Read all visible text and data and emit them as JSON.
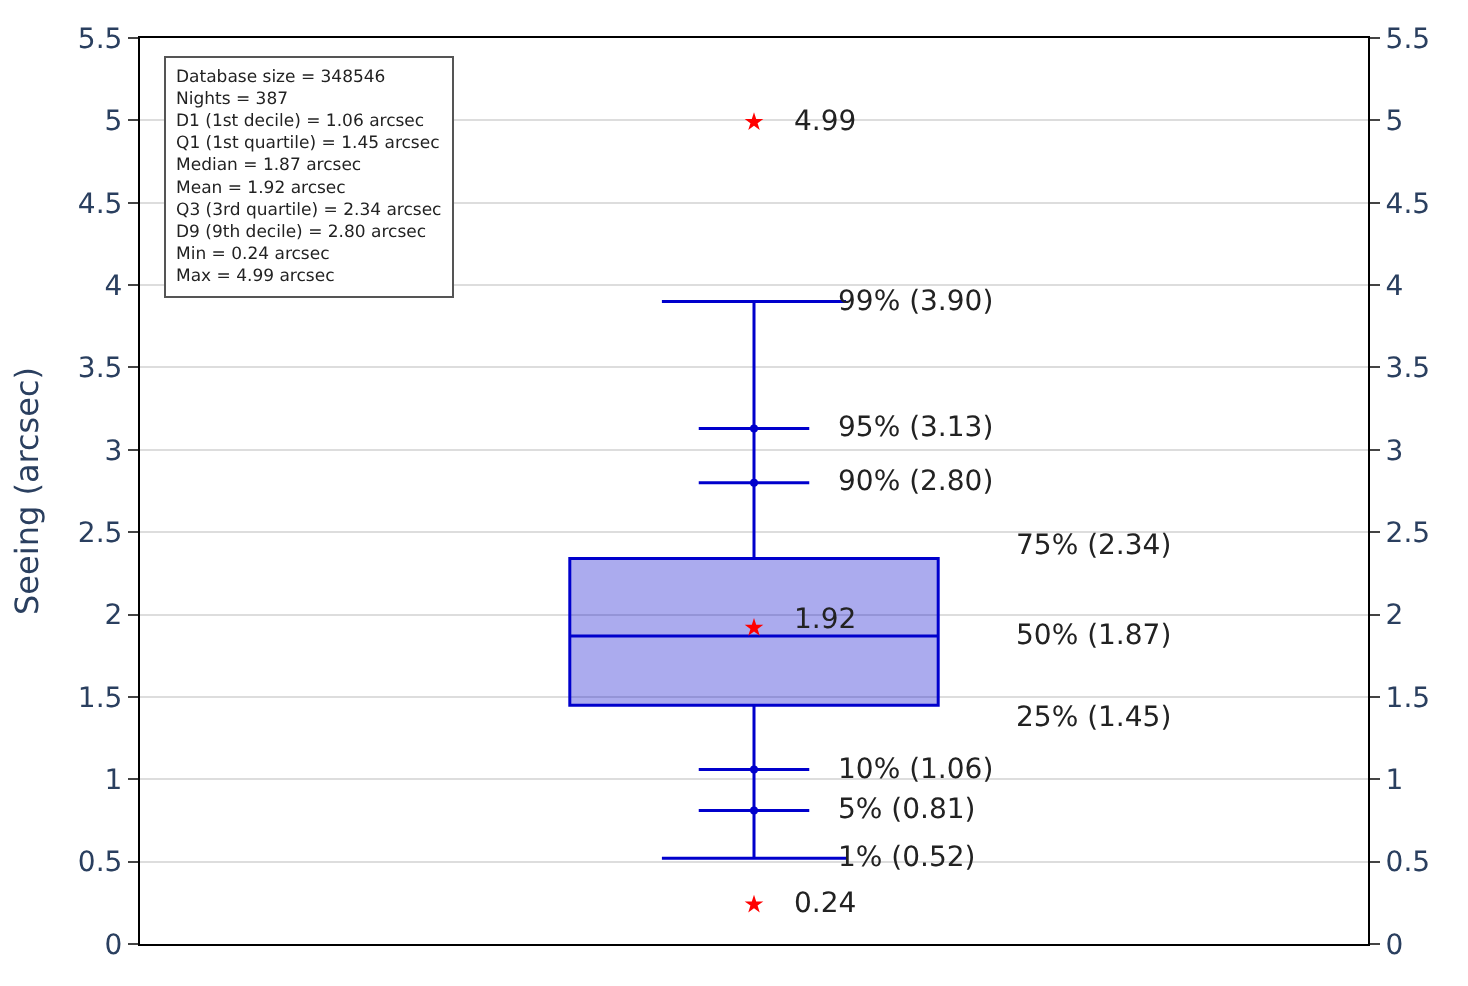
{
  "chart_data": {
    "type": "box",
    "ylabel": "Seeing (arcsec)",
    "categories": [
      null
    ],
    "boxes": [
      {
        "low": 0.52,
        "q1": 1.45,
        "median": 1.87,
        "q3": 2.34,
        "high": 3.9,
        "mean": 1.92,
        "outliers": [
          0.24,
          4.99
        ]
      }
    ],
    "colors": [
      "#0000cc"
    ],
    "series": [
      {
        "type": "line",
        "marker": "circle",
        "color": "#0000cc",
        "values": [
          0.81
        ]
      },
      {
        "type": "line",
        "marker": "circle",
        "color": "#0000cc",
        "values": [
          1.06
        ]
      },
      {
        "type": "line",
        "marker": "circle",
        "color": "#0000cc",
        "values": [
          2.8
        ]
      },
      {
        "type": "line",
        "marker": "circle",
        "color": "#0000cc",
        "values": [
          3.13
        ]
      }
    ],
    "annotations": [
      "Database size = 348546\nNights = 387\nD1 (1st decile) = 1.06 arcsec\nQ1 (1st quartile) = 1.45 arcsec\nMedian = 1.87 arcsec\nMean = 1.92 arcsec\nQ3 (3rd quartile) = 2.34 arcsec\nD9 (9th decile) = 2.80 arcsec\nMin = 0.24 arcsec\nMax = 4.99 arcsec",
      "4.99",
      "99% (3.90)",
      "95% (3.13)",
      "90% (2.80)",
      "75% (2.34)",
      "1.92",
      "50% (1.87)",
      "25% (1.45)",
      "10% (1.06)",
      "5% (0.81)",
      "1% (0.52)",
      "0.24"
    ],
    "ylim": [
      0,
      5.5
    ],
    "yticks": [
      0,
      0.5,
      1,
      1.5,
      2,
      2.5,
      3,
      3.5,
      4,
      4.5,
      5,
      5.5
    ],
    "y2lim": [
      0,
      5.5
    ],
    "y2ticks": [
      0,
      0.5,
      1,
      1.5,
      2,
      2.5,
      3,
      3.5,
      4,
      4.5,
      5,
      5.5
    ],
    "grid": "y",
    "marker": "star"
  }
}
